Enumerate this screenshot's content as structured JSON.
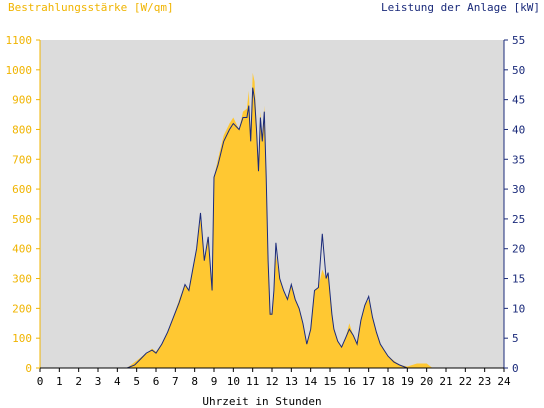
{
  "chart_data": {
    "type": "area",
    "title_left": "Bestrahlungsstärke [W/qm]",
    "title_right": "Leistung der Anlage [kW]",
    "xlabel": "Uhrzeit in Stunden",
    "xlim": [
      0,
      24
    ],
    "ylim_left": [
      0,
      1100
    ],
    "ylim_right": [
      0,
      55
    ],
    "x_ticks": [
      "0",
      "1",
      "2",
      "3",
      "4",
      "5",
      "6",
      "7",
      "8",
      "9",
      "10",
      "11",
      "12",
      "13",
      "14",
      "15",
      "16",
      "17",
      "18",
      "19",
      "20",
      "21",
      "22",
      "23",
      "24"
    ],
    "y_ticks_left": [
      "0",
      "100",
      "200",
      "300",
      "400",
      "500",
      "600",
      "700",
      "800",
      "900",
      "1000",
      "1100"
    ],
    "y_ticks_right": [
      "0",
      "5",
      "10",
      "15",
      "20",
      "25",
      "30",
      "35",
      "40",
      "45",
      "50",
      "55"
    ],
    "colors": {
      "irradiance_fill": "#ffc832",
      "power_line": "#1a2a7a",
      "plot_background": "#dcdcdc",
      "left_axis_text": "#f0b400",
      "right_axis_text": "#1a2a7a"
    },
    "series": [
      {
        "name": "Bestrahlungsstärke [W/qm]",
        "axis": "left",
        "x": [
          0,
          4.5,
          4.9,
          5.2,
          5.5,
          5.8,
          6.0,
          6.3,
          6.6,
          6.9,
          7.2,
          7.5,
          7.7,
          7.9,
          8.1,
          8.3,
          8.5,
          8.7,
          8.9,
          9.0,
          9.2,
          9.5,
          9.8,
          10.0,
          10.3,
          10.5,
          10.7,
          10.8,
          10.9,
          11.0,
          11.1,
          11.2,
          11.3,
          11.4,
          11.5,
          11.6,
          11.7,
          11.8,
          11.9,
          12.0,
          12.1,
          12.2,
          12.4,
          12.6,
          12.8,
          13.0,
          13.2,
          13.4,
          13.6,
          13.8,
          14.0,
          14.2,
          14.4,
          14.6,
          14.8,
          14.9,
          15.0,
          15.1,
          15.2,
          15.4,
          15.6,
          15.8,
          16.0,
          16.2,
          16.4,
          16.6,
          16.8,
          17.0,
          17.2,
          17.4,
          17.6,
          17.8,
          18.0,
          18.3,
          18.6,
          19.0,
          19.5,
          20.0,
          20.3,
          24
        ],
        "y": [
          0,
          0,
          20,
          35,
          50,
          65,
          55,
          80,
          120,
          170,
          230,
          280,
          260,
          330,
          400,
          500,
          360,
          440,
          260,
          640,
          700,
          780,
          820,
          840,
          800,
          860,
          870,
          930,
          770,
          990,
          960,
          820,
          690,
          860,
          760,
          880,
          650,
          360,
          190,
          180,
          260,
          380,
          300,
          260,
          230,
          280,
          230,
          200,
          150,
          80,
          130,
          260,
          270,
          330,
          300,
          320,
          250,
          180,
          130,
          90,
          70,
          100,
          150,
          110,
          80,
          160,
          210,
          230,
          170,
          120,
          80,
          60,
          40,
          25,
          10,
          5,
          15,
          15,
          0,
          0
        ]
      },
      {
        "name": "Leistung der Anlage [kW]",
        "axis": "right",
        "x": [
          0,
          4.5,
          4.9,
          5.2,
          5.5,
          5.8,
          6.0,
          6.3,
          6.6,
          6.9,
          7.2,
          7.5,
          7.7,
          7.9,
          8.1,
          8.3,
          8.5,
          8.7,
          8.9,
          9.0,
          9.2,
          9.5,
          9.8,
          10.0,
          10.3,
          10.5,
          10.7,
          10.8,
          10.9,
          11.0,
          11.1,
          11.2,
          11.3,
          11.4,
          11.5,
          11.6,
          11.7,
          11.8,
          11.9,
          12.0,
          12.1,
          12.2,
          12.4,
          12.6,
          12.8,
          13.0,
          13.2,
          13.4,
          13.6,
          13.8,
          14.0,
          14.2,
          14.4,
          14.6,
          14.8,
          14.9,
          15.0,
          15.1,
          15.2,
          15.4,
          15.6,
          15.8,
          16.0,
          16.2,
          16.4,
          16.6,
          16.8,
          17.0,
          17.2,
          17.4,
          17.6,
          17.8,
          18.0,
          18.3,
          18.6,
          19.0,
          24
        ],
        "y": [
          0,
          0,
          0.5,
          1.5,
          2.5,
          3,
          2.5,
          4,
          6,
          8.5,
          11,
          14,
          13,
          16.5,
          20,
          26,
          18,
          22,
          13,
          32,
          34,
          38,
          40,
          41,
          40,
          42,
          42,
          44,
          38,
          47,
          45,
          40,
          33,
          42,
          38,
          43,
          32,
          18,
          9,
          9,
          13,
          21,
          15,
          13,
          11.5,
          14,
          11.5,
          10,
          7.5,
          4,
          6.5,
          13,
          13.5,
          22.5,
          15,
          16,
          12.5,
          9,
          6.5,
          4.5,
          3.5,
          5,
          6.5,
          5.5,
          4,
          8,
          10.5,
          12,
          8.5,
          6,
          4,
          3,
          2,
          1,
          0.5,
          0,
          0
        ]
      }
    ]
  }
}
